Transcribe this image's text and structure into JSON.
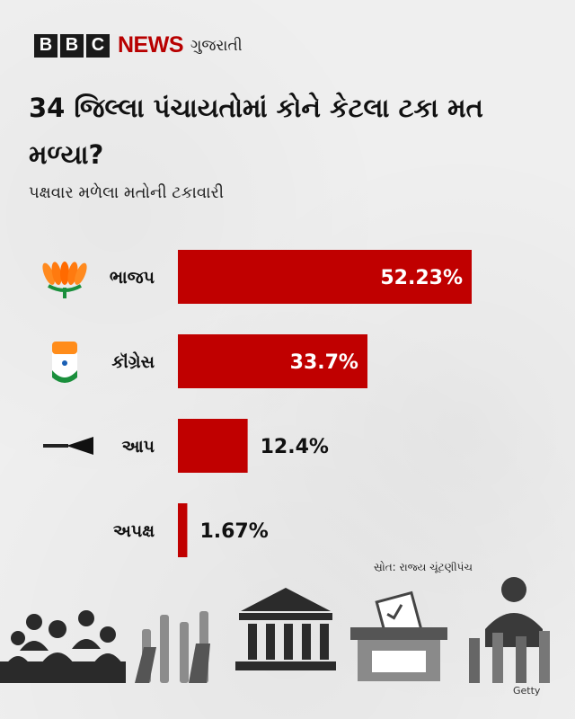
{
  "brand": {
    "letters": [
      "B",
      "B",
      "C"
    ],
    "news": "NEWS",
    "language": "ગુજરાતી"
  },
  "title": "34 જિલ્લા પંચાયતોમાં કોને કેટલા ટકા મત મળ્યા?",
  "subtitle": "પક્ષવાર મળેલા મતોની ટકાવારી",
  "source": "સ્રોત: રાજ્ય ચૂંટણીપંચ",
  "credit": "Getty",
  "colors": {
    "bar": "#c00000",
    "brand_red": "#b80000"
  },
  "chart_data": {
    "type": "bar",
    "orientation": "horizontal",
    "title": "34 જિલ્લા પંચાયતોમાં કોને કેટલા ટકા મત મળ્યા?",
    "subtitle": "પક્ષવાર મળેલા મતોની ટકાવારી",
    "categories": [
      "ભાજપ",
      "કૉંગ્રેસ",
      "આપ",
      "અપક્ષ"
    ],
    "values": [
      52.23,
      33.7,
      12.4,
      1.67
    ],
    "value_labels": [
      "52.23%",
      "33.7%",
      "12.4%",
      "1.67%"
    ],
    "icons": [
      "lotus-icon",
      "hand-icon",
      "broom-icon",
      ""
    ],
    "xlim": [
      0,
      52.23
    ],
    "grid": false,
    "legend": "none"
  }
}
